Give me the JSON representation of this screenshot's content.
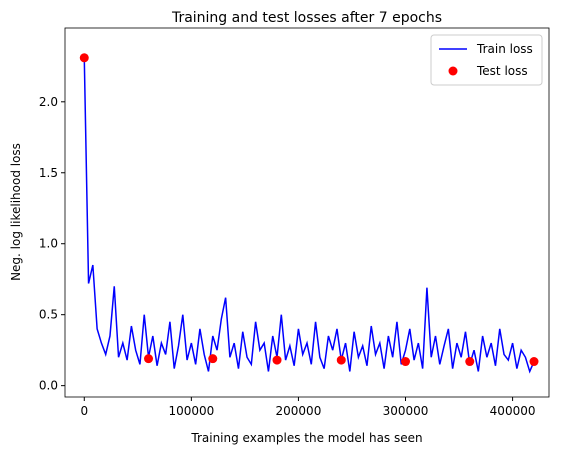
{
  "chart_data": {
    "type": "line",
    "title": "Training and test losses after 7 epochs",
    "x_label": "Training examples the model has seen",
    "y_label": "Neg. log likelihood loss",
    "xlim": [
      -18000,
      434000
    ],
    "ylim": [
      -0.08,
      2.52
    ],
    "xticks": [
      0,
      100000,
      200000,
      300000,
      400000
    ],
    "yticks": [
      {
        "value": 0,
        "label": "0.0"
      },
      0.5,
      {
        "value": 1,
        "label": "1.0"
      },
      1.5,
      {
        "value": 2,
        "label": "2.0"
      }
    ],
    "legend": "upper right",
    "series": [
      {
        "name": "Train loss",
        "color": "#0000ff",
        "kind": "line",
        "x": [
          0,
          4000,
          8000,
          12000,
          16000,
          20000,
          24000,
          28000,
          32000,
          36000,
          40000,
          44000,
          48000,
          52000,
          56000,
          60000,
          64000,
          68000,
          72000,
          76000,
          80000,
          84000,
          88000,
          92000,
          96000,
          100000,
          104000,
          108000,
          112000,
          116000,
          120000,
          124000,
          128000,
          132000,
          136000,
          140000,
          144000,
          148000,
          152000,
          156000,
          160000,
          164000,
          168000,
          172000,
          176000,
          180000,
          184000,
          188000,
          192000,
          196000,
          200000,
          204000,
          208000,
          212000,
          216000,
          220000,
          224000,
          228000,
          232000,
          236000,
          240000,
          244000,
          248000,
          252000,
          256000,
          260000,
          264000,
          268000,
          272000,
          276000,
          280000,
          284000,
          288000,
          292000,
          296000,
          300000,
          304000,
          308000,
          312000,
          316000,
          320000,
          324000,
          328000,
          332000,
          336000,
          340000,
          344000,
          348000,
          352000,
          356000,
          360000,
          364000,
          368000,
          372000,
          376000,
          380000,
          384000,
          388000,
          392000,
          396000,
          400000,
          404000,
          408000,
          412000,
          416000,
          420000
        ],
        "values": [
          2.31,
          0.72,
          0.85,
          0.4,
          0.3,
          0.22,
          0.35,
          0.7,
          0.2,
          0.3,
          0.18,
          0.42,
          0.25,
          0.15,
          0.5,
          0.2,
          0.35,
          0.14,
          0.3,
          0.22,
          0.45,
          0.12,
          0.28,
          0.5,
          0.18,
          0.3,
          0.15,
          0.4,
          0.22,
          0.1,
          0.35,
          0.25,
          0.47,
          0.62,
          0.2,
          0.3,
          0.12,
          0.38,
          0.2,
          0.15,
          0.45,
          0.25,
          0.3,
          0.1,
          0.35,
          0.2,
          0.5,
          0.18,
          0.28,
          0.14,
          0.4,
          0.22,
          0.3,
          0.15,
          0.45,
          0.2,
          0.12,
          0.35,
          0.25,
          0.4,
          0.18,
          0.3,
          0.1,
          0.38,
          0.2,
          0.28,
          0.14,
          0.42,
          0.22,
          0.3,
          0.12,
          0.35,
          0.2,
          0.45,
          0.15,
          0.25,
          0.4,
          0.18,
          0.3,
          0.12,
          0.69,
          0.2,
          0.35,
          0.15,
          0.28,
          0.4,
          0.12,
          0.3,
          0.2,
          0.38,
          0.15,
          0.25,
          0.1,
          0.35,
          0.2,
          0.3,
          0.14,
          0.4,
          0.22,
          0.18,
          0.3,
          0.12,
          0.25,
          0.2,
          0.1,
          0.17
        ]
      },
      {
        "name": "Test loss",
        "color": "#ff0000",
        "kind": "scatter",
        "x": [
          0,
          60000,
          120000,
          180000,
          240000,
          300000,
          360000,
          420000
        ],
        "values": [
          2.31,
          0.19,
          0.19,
          0.18,
          0.18,
          0.17,
          0.17,
          0.17
        ]
      }
    ]
  }
}
